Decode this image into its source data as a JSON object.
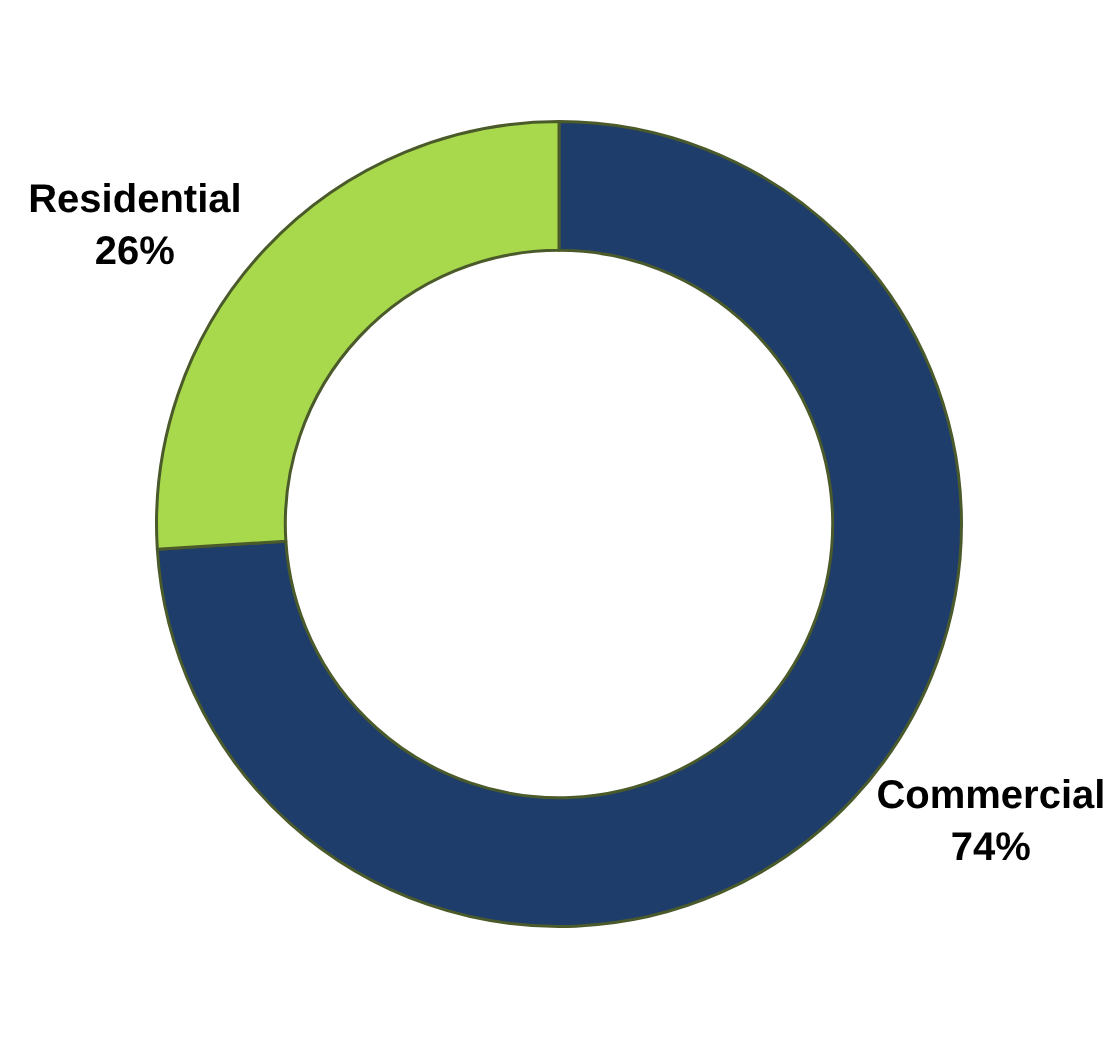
{
  "chart_data": {
    "type": "donut",
    "categories": [
      "Commercial",
      "Residential"
    ],
    "values": [
      74,
      26
    ],
    "colors": [
      "#1f3d6b",
      "#a8d84c"
    ],
    "value_labels": [
      "74%",
      "26%"
    ],
    "legend": false
  }
}
